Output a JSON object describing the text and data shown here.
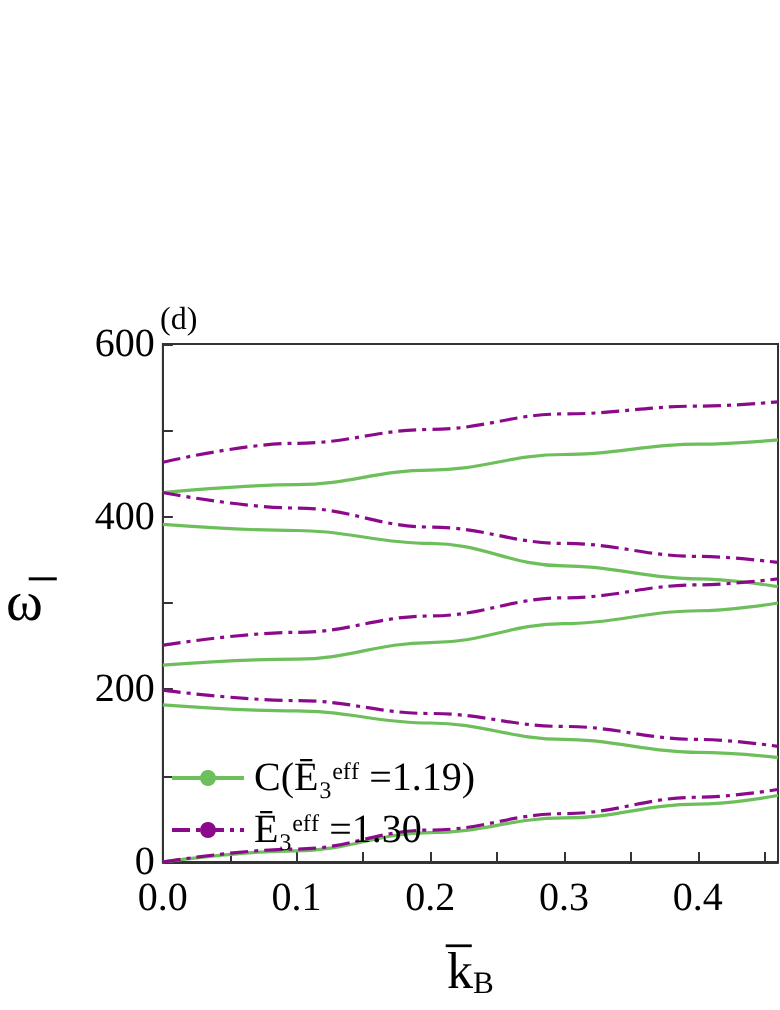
{
  "chart_data": {
    "type": "line",
    "xlabel": "k̅$_{B}$",
    "ylabel": "ω̅",
    "annotations": [
      "(d)"
    ],
    "x": [
      0,
      0.1,
      0.2,
      0.3,
      0.4,
      0.46
    ],
    "series": [
      {
        "name": "C(Ē₃ᵉᶠᶠ =1.19)",
        "color": "#6dbf5b",
        "line_style": "solid",
        "values": [
          428,
          437,
          454,
          472,
          484,
          489
        ]
      },
      {
        "color": "#6dbf5b",
        "line_style": "solid",
        "values": [
          391,
          384,
          369,
          343,
          328,
          319
        ]
      },
      {
        "color": "#6dbf5b",
        "line_style": "solid",
        "values": [
          228,
          235,
          254,
          276,
          291,
          300
        ]
      },
      {
        "color": "#6dbf5b",
        "line_style": "solid",
        "values": [
          182,
          175,
          161,
          142,
          127,
          121
        ]
      },
      {
        "color": "#6dbf5b",
        "line_style": "solid",
        "values": [
          0,
          13,
          34,
          51,
          67,
          77
        ]
      },
      {
        "name": "Ē₃ᵉᶠᶠ =1.30",
        "color": "#8b0a8b",
        "line_style": "dashed",
        "values": [
          463,
          485,
          501,
          519,
          528,
          533
        ]
      },
      {
        "color": "#8b0a8b",
        "line_style": "dashed",
        "values": [
          428,
          410,
          388,
          369,
          354,
          347
        ]
      },
      {
        "color": "#8b0a8b",
        "line_style": "dashed",
        "values": [
          251,
          266,
          285,
          306,
          321,
          328
        ]
      },
      {
        "color": "#8b0a8b",
        "line_style": "dashed",
        "values": [
          199,
          187,
          172,
          157,
          142,
          134
        ]
      },
      {
        "color": "#8b0a8b",
        "line_style": "dashed",
        "values": [
          0,
          15,
          37,
          56,
          75,
          84
        ]
      }
    ],
    "xlim": [
      0,
      0.46
    ],
    "xticks": [
      {
        "value": 0,
        "label": "0.0"
      },
      {
        "value": 0.05,
        "label": null
      },
      {
        "value": 0.1,
        "label": "0.1"
      },
      {
        "value": 0.15,
        "label": null
      },
      {
        "value": 0.2,
        "label": "0.2"
      },
      {
        "value": 0.25,
        "label": null
      },
      {
        "value": 0.3,
        "label": "0.3"
      },
      {
        "value": 0.35,
        "label": null
      },
      {
        "value": 0.4,
        "label": "0.4"
      },
      {
        "value": 0.45,
        "label": null
      }
    ],
    "ylim": [
      0,
      600
    ],
    "yticks": [
      0,
      {
        "value": 100,
        "label": null
      },
      200,
      {
        "value": 300,
        "label": null
      },
      400,
      {
        "value": 500,
        "label": null
      },
      600
    ],
    "grid": false,
    "legend": "bottom left",
    "marker": "none"
  }
}
